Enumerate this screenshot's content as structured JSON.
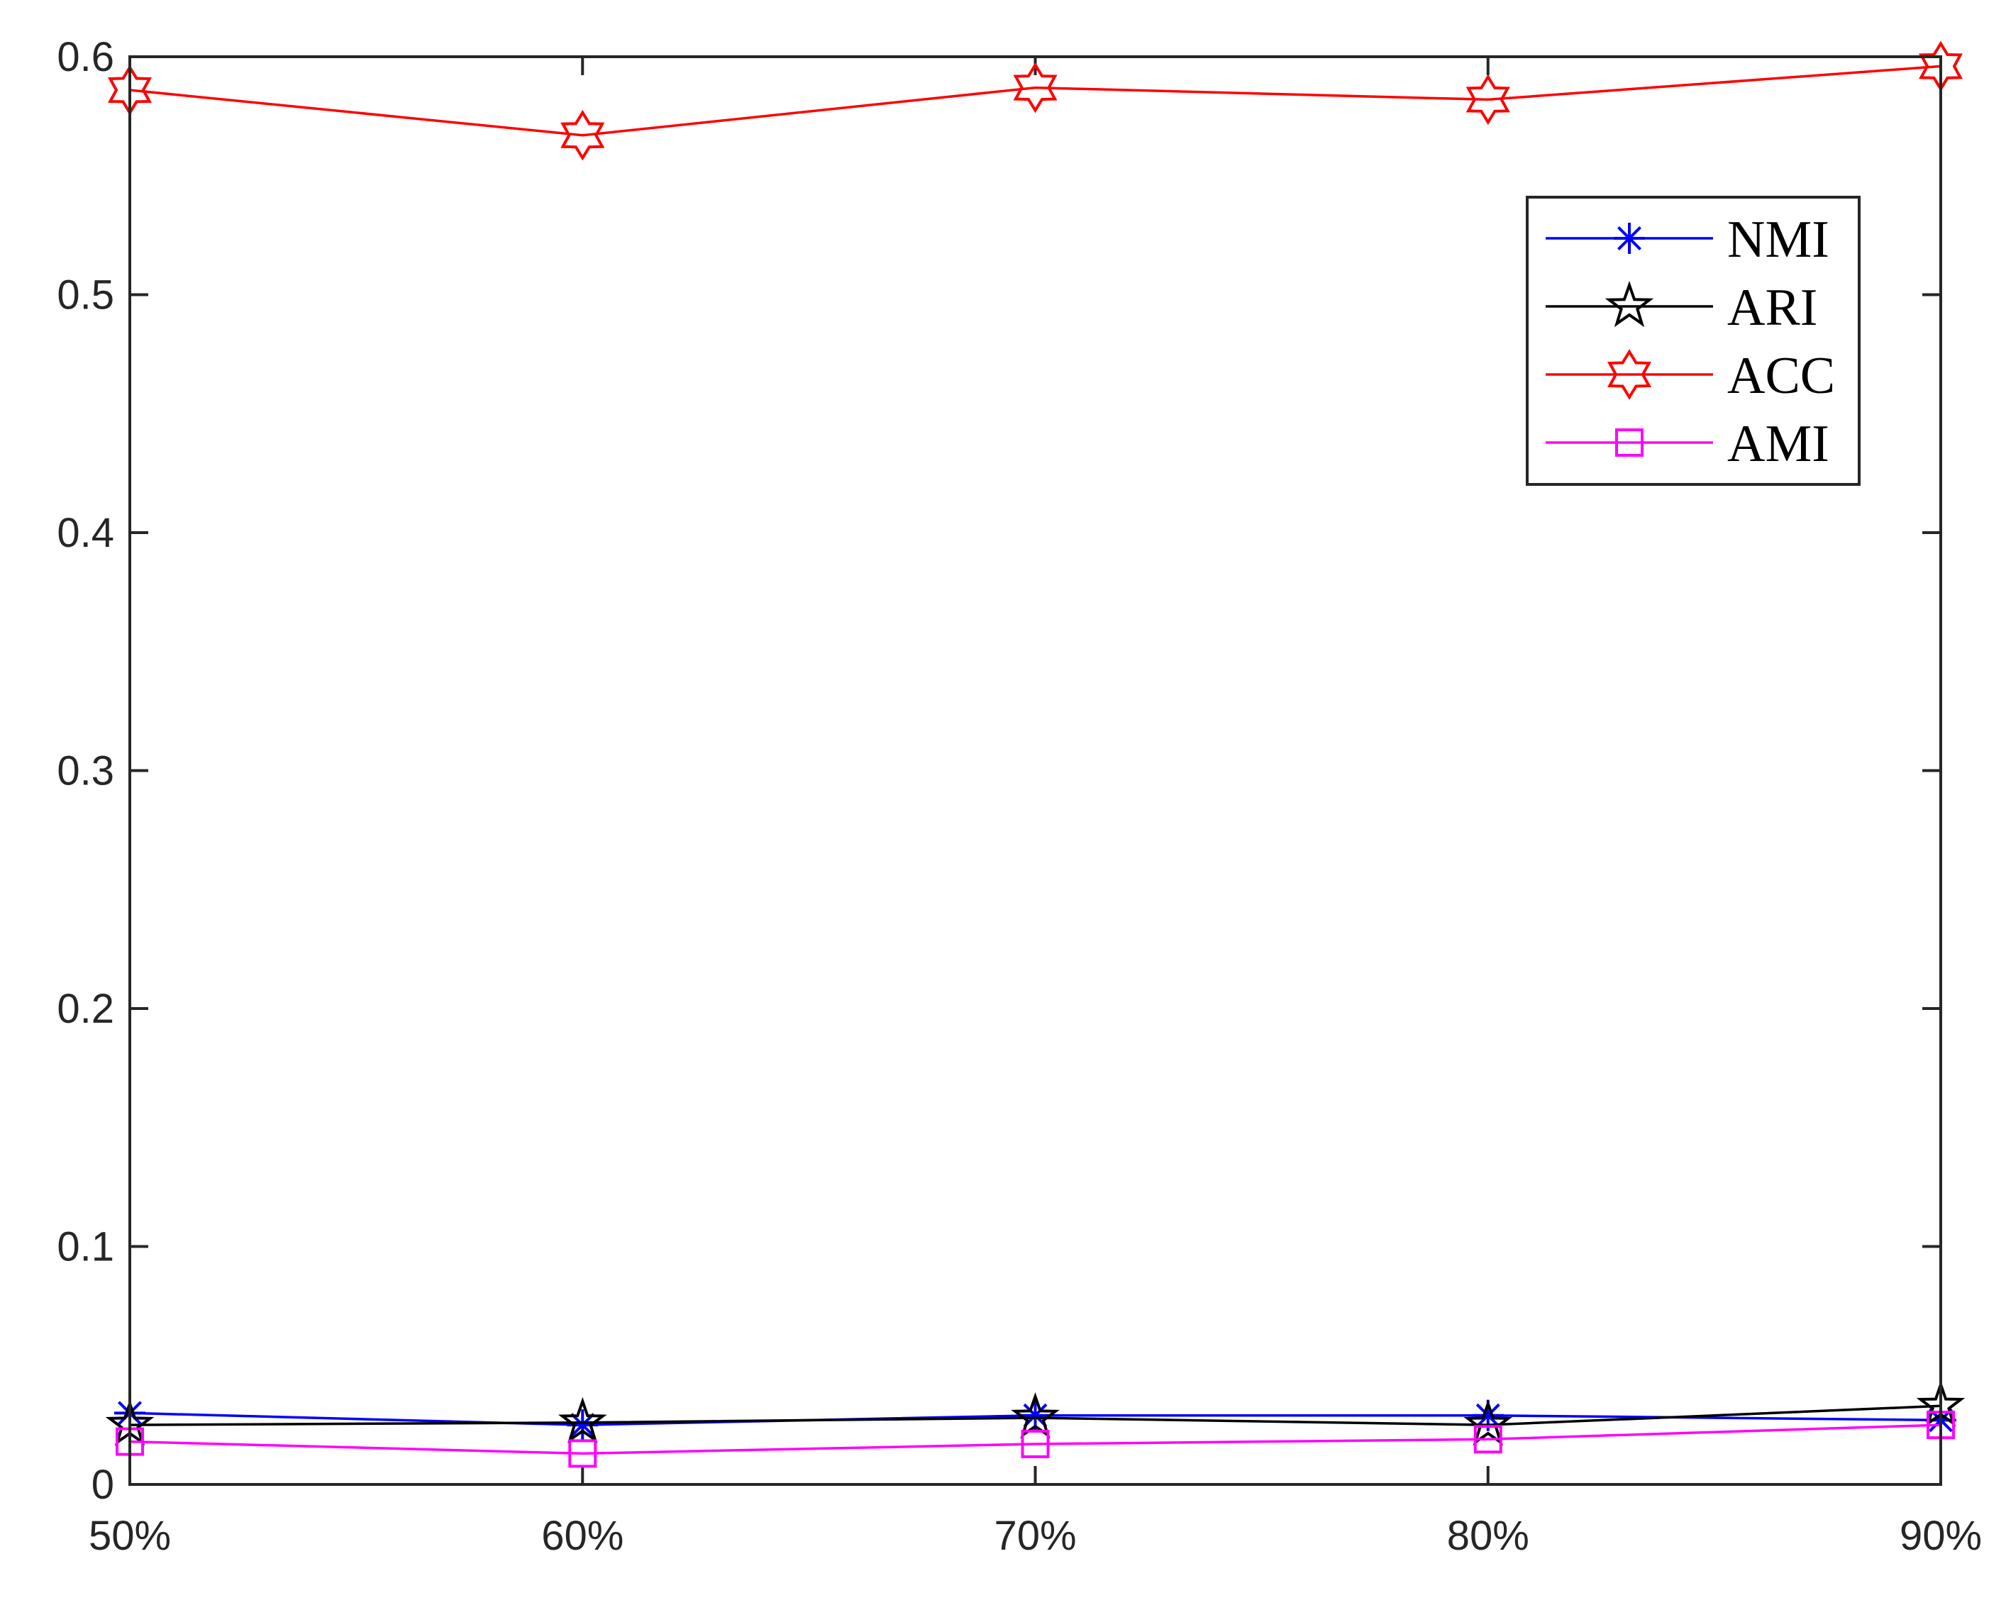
{
  "chart_data": {
    "type": "line",
    "title": "",
    "xlabel": "",
    "ylabel": "",
    "categories": [
      "50%",
      "60%",
      "70%",
      "80%",
      "90%"
    ],
    "ylim": [
      0,
      0.6
    ],
    "yticks": [
      0,
      0.1,
      0.2,
      0.3,
      0.4,
      0.5,
      0.6
    ],
    "ytick_labels": [
      "0",
      "0.1",
      "0.2",
      "0.3",
      "0.4",
      "0.5",
      "0.6"
    ],
    "grid": false,
    "legend_position": "top-right",
    "series": [
      {
        "name": "NMI",
        "color": "#0000ff",
        "marker": "asterisk",
        "values": [
          0.03,
          0.025,
          0.029,
          0.029,
          0.027
        ]
      },
      {
        "name": "ARI",
        "color": "#000000",
        "marker": "pentagram",
        "values": [
          0.025,
          0.026,
          0.028,
          0.025,
          0.033
        ]
      },
      {
        "name": "ACC",
        "color": "#ff0000",
        "marker": "hexagram",
        "values": [
          0.586,
          0.567,
          0.587,
          0.582,
          0.596
        ]
      },
      {
        "name": "AMI",
        "color": "#ff00ff",
        "marker": "square",
        "values": [
          0.018,
          0.013,
          0.017,
          0.019,
          0.025
        ]
      }
    ]
  }
}
